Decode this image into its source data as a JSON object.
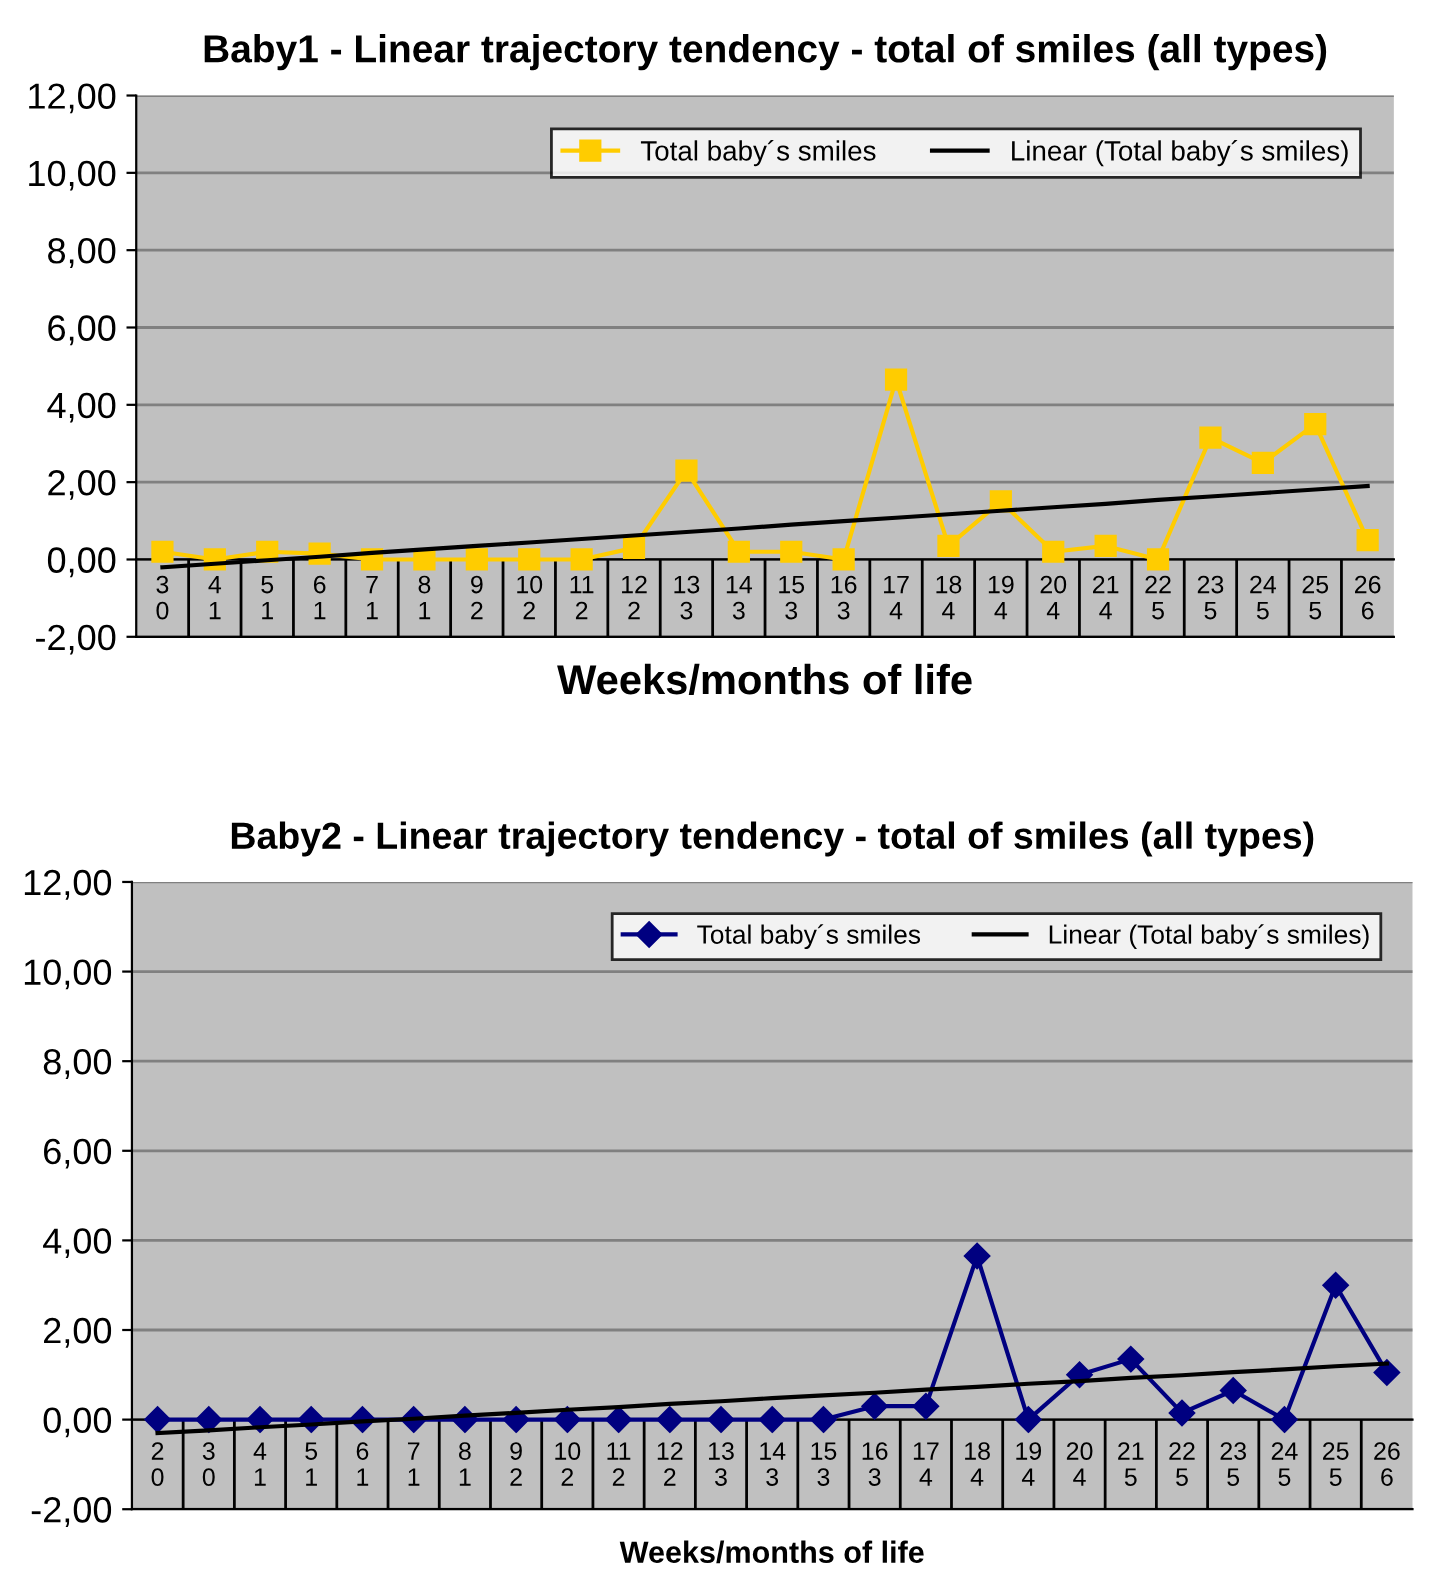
{
  "chart_data": [
    {
      "type": "line",
      "title": "Baby1 - Linear trajectory tendency - total of smiles (all types)",
      "xlabel": "Weeks/months of life",
      "categories": [
        "3\n0",
        "4\n1",
        "5\n1",
        "6\n1",
        "7\n1",
        "8\n1",
        "9\n2",
        "10\n2",
        "11\n2",
        "12\n2",
        "13\n3",
        "14\n3",
        "15\n3",
        "16\n3",
        "17\n4",
        "18\n4",
        "19\n4",
        "20\n4",
        "21\n4",
        "22\n5",
        "23\n5",
        "24\n5",
        "25\n5",
        "26\n6"
      ],
      "series": [
        {
          "name": "Total baby´s smiles",
          "color": "#ffcc00",
          "marker": "square",
          "values": [
            0.2,
            0,
            0.2,
            0.15,
            0,
            0,
            0,
            0,
            0,
            0.3,
            2.3,
            0.2,
            0.2,
            0,
            4.65,
            0.35,
            1.5,
            0.2,
            0.35,
            0,
            3.15,
            2.5,
            3.5,
            0.5
          ]
        },
        {
          "name": "Linear (Total baby´s smiles)",
          "color": "#000000",
          "marker": "none",
          "values": [
            -0.2,
            -0.11,
            -0.02,
            0.07,
            0.17,
            0.26,
            0.35,
            0.44,
            0.53,
            0.62,
            0.71,
            0.8,
            0.9,
            0.99,
            1.08,
            1.17,
            1.26,
            1.35,
            1.44,
            1.54,
            1.63,
            1.72,
            1.81,
            1.9
          ]
        }
      ],
      "ylim": [
        -2,
        12
      ],
      "yticks": [
        {
          "value": -2,
          "label": "-2,00"
        },
        {
          "value": 0,
          "label": "0,00"
        },
        {
          "value": 2,
          "label": "2,00"
        },
        {
          "value": 4,
          "label": "4,00"
        },
        {
          "value": 6,
          "label": "6,00"
        },
        {
          "value": 8,
          "label": "8,00"
        },
        {
          "value": 10,
          "label": "10,00"
        },
        {
          "value": 12,
          "label": "12,00"
        }
      ],
      "grid": "y",
      "legend": "top right"
    },
    {
      "type": "line",
      "title": "Baby2 - Linear trajectory tendency - total of smiles (all types)",
      "xlabel": "Weeks/months of life",
      "categories": [
        "2\n0",
        "3\n0",
        "4\n1",
        "5\n1",
        "6\n1",
        "7\n1",
        "8\n1",
        "9\n2",
        "10\n2",
        "11\n2",
        "12\n2",
        "13\n3",
        "14\n3",
        "15\n3",
        "16\n3",
        "17\n4",
        "18\n4",
        "19\n4",
        "20\n4",
        "21\n5",
        "22\n5",
        "23\n5",
        "24\n5",
        "25\n5",
        "26\n6"
      ],
      "series": [
        {
          "name": "Total baby´s smiles",
          "color": "#000080",
          "marker": "diamond",
          "values": [
            0,
            0,
            0,
            0,
            0,
            0,
            0,
            0,
            0,
            0,
            0,
            0,
            0,
            0,
            0.3,
            0.3,
            3.65,
            0,
            1.0,
            1.35,
            0.15,
            0.65,
            0,
            3.0,
            1.05
          ]
        },
        {
          "name": "Linear (Total baby´s smiles)",
          "color": "#000000",
          "marker": "none",
          "values": [
            -0.3,
            -0.24,
            -0.17,
            -0.11,
            -0.04,
            0.02,
            0.09,
            0.15,
            0.22,
            0.28,
            0.35,
            0.41,
            0.48,
            0.54,
            0.6,
            0.67,
            0.73,
            0.8,
            0.86,
            0.93,
            0.99,
            1.06,
            1.12,
            1.19,
            1.25
          ]
        }
      ],
      "ylim": [
        -2,
        12
      ],
      "yticks": [
        {
          "value": -2,
          "label": "-2,00"
        },
        {
          "value": 0,
          "label": "0,00"
        },
        {
          "value": 2,
          "label": "2,00"
        },
        {
          "value": 4,
          "label": "4,00"
        },
        {
          "value": 6,
          "label": "6,00"
        },
        {
          "value": 8,
          "label": "8,00"
        },
        {
          "value": 10,
          "label": "10,00"
        },
        {
          "value": 12,
          "label": "12,00"
        }
      ],
      "grid": "y",
      "legend": "top right"
    }
  ]
}
